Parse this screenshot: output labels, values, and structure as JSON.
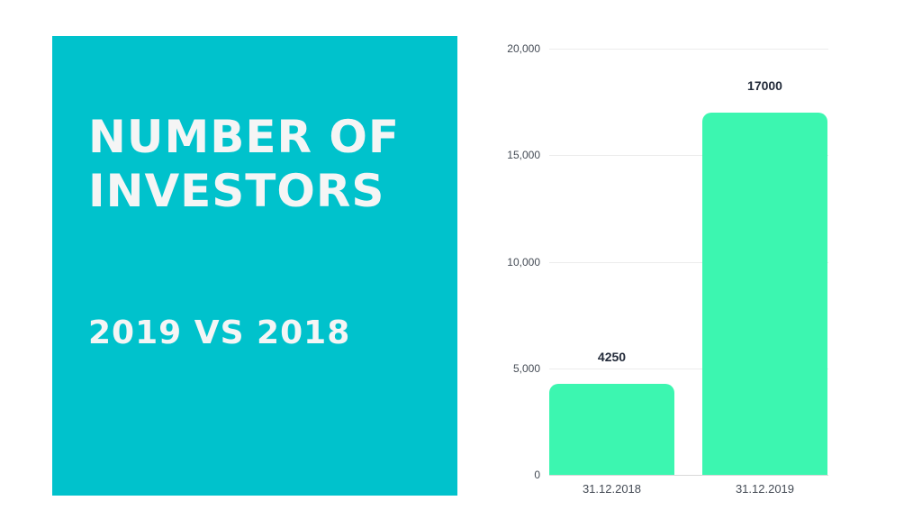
{
  "panel": {
    "title_line1": "NUMBER OF",
    "title_line2": "INVESTORS",
    "subtitle": "2019 VS 2018",
    "background_color": "#00c2cc"
  },
  "chart_data": {
    "type": "bar",
    "title": "Number of Investors",
    "subtitle": "2019 vs 2018",
    "categories": [
      "31.12.2018",
      "31.12.2019"
    ],
    "values": [
      4250,
      17000
    ],
    "data_labels": [
      "4250",
      "17000"
    ],
    "xlabel": "",
    "ylabel": "",
    "ylim": [
      0,
      20000
    ],
    "yticks": [
      "0",
      "5,000",
      "10,000",
      "15,000",
      "20,000"
    ],
    "ytick_values": [
      0,
      5000,
      10000,
      15000,
      20000
    ],
    "grid": true,
    "legend": "none",
    "bar_color": "#3cf6b0"
  }
}
